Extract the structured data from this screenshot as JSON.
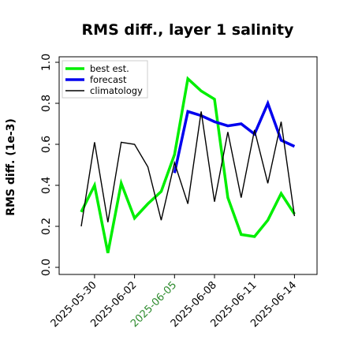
{
  "chart_data": {
    "type": "line",
    "title": "RMS diff., layer 1 salinity",
    "xlabel": "",
    "ylabel": "RMS diff. (1e-3)",
    "ylim": [
      0.0,
      1.0
    ],
    "yticks": [
      "0.0",
      "0.2",
      "0.4",
      "0.6",
      "0.8",
      "1.0"
    ],
    "xticks": [
      "2025-05-30",
      "2025-06-02",
      "2025-06-05",
      "2025-06-08",
      "2025-06-11",
      "2025-06-14"
    ],
    "highlighted_xtick": "2025-06-05",
    "highlight_color": "#2e8b2e",
    "grid": false,
    "legend_position": "top-left",
    "series": [
      {
        "name": "best est.",
        "color": "#00ee00",
        "x": [
          "2025-05-29",
          "2025-05-30",
          "2025-05-31",
          "2025-06-01",
          "2025-06-02",
          "2025-06-03",
          "2025-06-04",
          "2025-06-05",
          "2025-06-06",
          "2025-06-07",
          "2025-06-08",
          "2025-06-09",
          "2025-06-10",
          "2025-06-11",
          "2025-06-12",
          "2025-06-13",
          "2025-06-14"
        ],
        "values": [
          0.27,
          0.4,
          0.07,
          0.41,
          0.24,
          0.31,
          0.37,
          0.55,
          0.92,
          0.86,
          0.82,
          0.34,
          0.16,
          0.15,
          0.23,
          0.36,
          0.26
        ]
      },
      {
        "name": "forecast",
        "color": "#0000ee",
        "x": [
          "2025-06-05",
          "2025-06-06",
          "2025-06-07",
          "2025-06-08",
          "2025-06-09",
          "2025-06-10",
          "2025-06-11",
          "2025-06-12",
          "2025-06-13",
          "2025-06-14"
        ],
        "values": [
          0.46,
          0.76,
          0.74,
          0.71,
          0.69,
          0.7,
          0.65,
          0.8,
          0.62,
          0.59
        ]
      },
      {
        "name": "climatology",
        "color": "#000000",
        "x": [
          "2025-05-29",
          "2025-05-30",
          "2025-05-31",
          "2025-06-01",
          "2025-06-02",
          "2025-06-03",
          "2025-06-04",
          "2025-06-05",
          "2025-06-06",
          "2025-06-07",
          "2025-06-08",
          "2025-06-09",
          "2025-06-10",
          "2025-06-11",
          "2025-06-12",
          "2025-06-13",
          "2025-06-14"
        ],
        "values": [
          0.2,
          0.61,
          0.22,
          0.61,
          0.6,
          0.49,
          0.23,
          0.51,
          0.31,
          0.76,
          0.32,
          0.66,
          0.34,
          0.67,
          0.41,
          0.71,
          0.25
        ]
      }
    ]
  }
}
